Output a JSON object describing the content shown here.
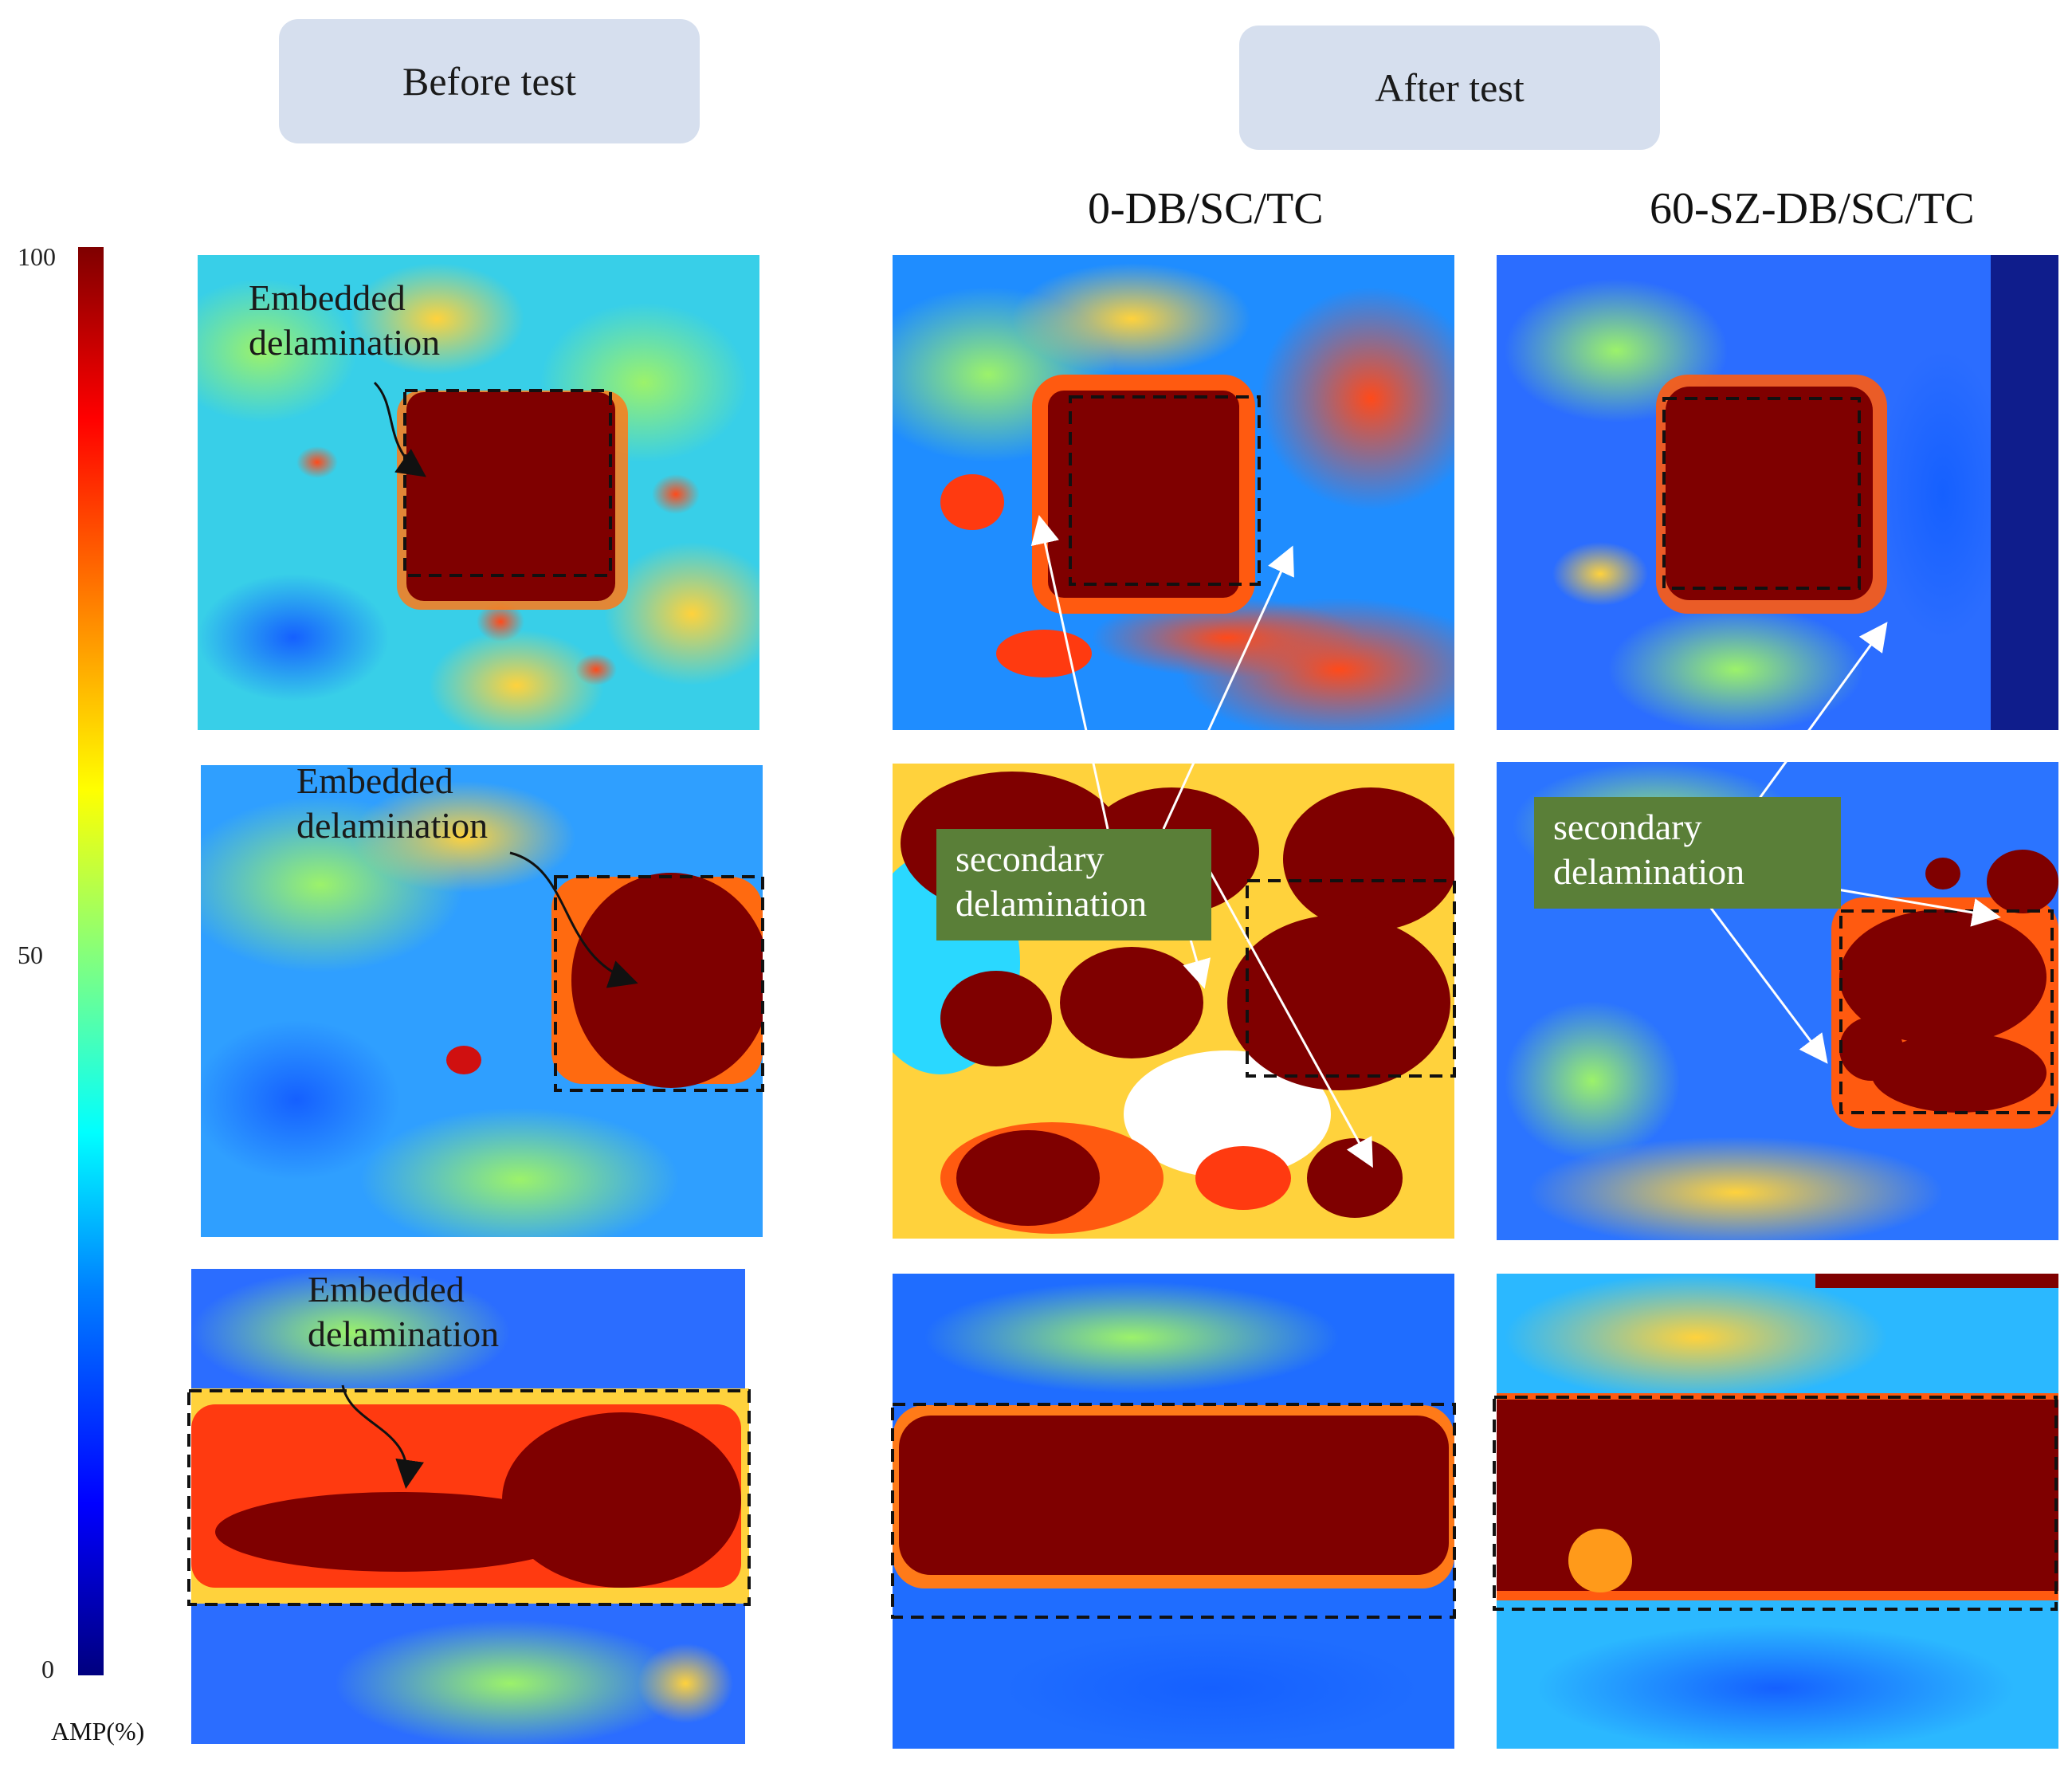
{
  "headers": {
    "before": "Before test",
    "after": "After test"
  },
  "columns": {
    "col2": "0-DB/SC/TC",
    "col3": "60-SZ-DB/SC/TC"
  },
  "scale": {
    "max": "100",
    "mid": "50",
    "min": "0",
    "unit": "AMP(%)"
  },
  "annotations": {
    "embedded": "Embedded delamination",
    "secondary": "secondary delamination"
  },
  "colors": {
    "dark_red": "#7f0000",
    "label_green": "#5a7f38",
    "header_box": "#d6dfee"
  }
}
